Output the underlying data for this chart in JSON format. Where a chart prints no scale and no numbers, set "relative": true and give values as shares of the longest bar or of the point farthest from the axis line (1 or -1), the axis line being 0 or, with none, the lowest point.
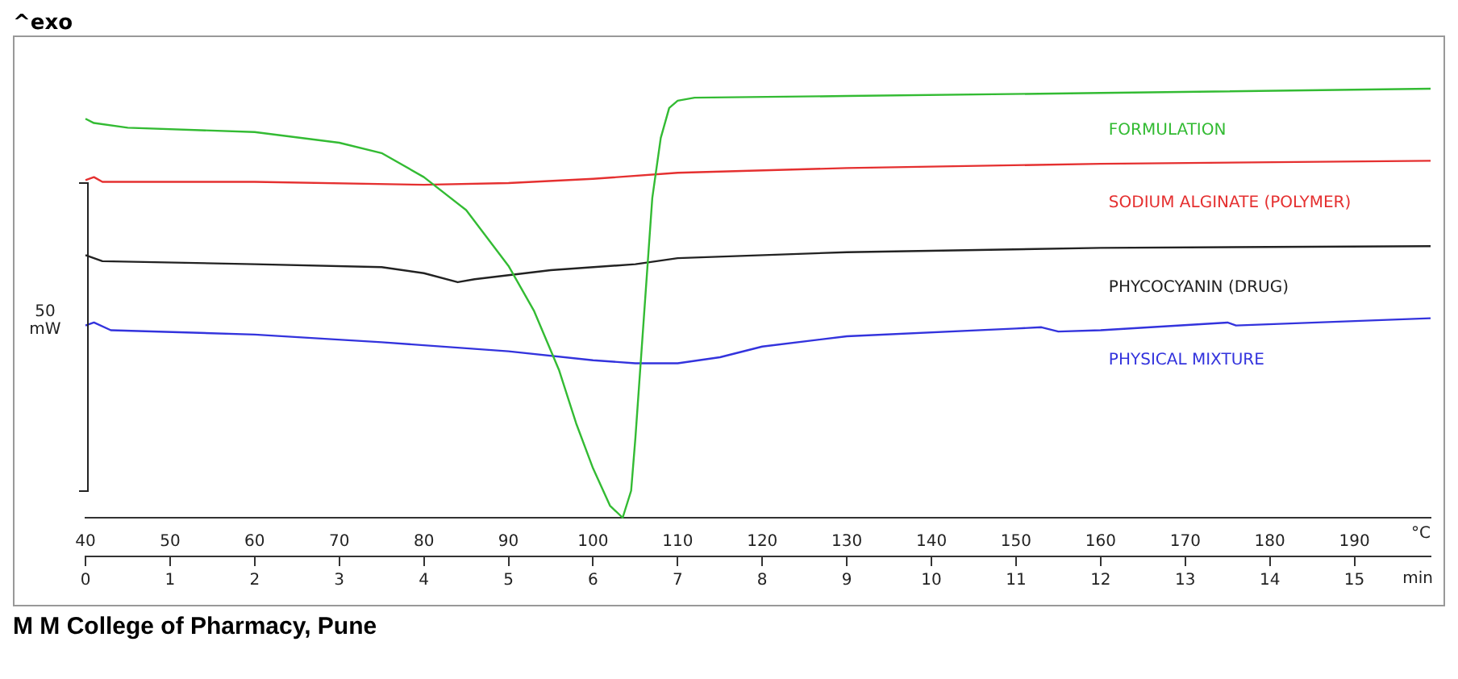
{
  "chart_data": {
    "type": "line",
    "relative": true,
    "xlabel": "°C",
    "x2label": "min",
    "xlim": [
      40,
      199
    ],
    "xticks": [
      40,
      50,
      60,
      70,
      80,
      90,
      100,
      110,
      120,
      130,
      140,
      150,
      160,
      170,
      180,
      190
    ],
    "x2lim": [
      0,
      15.9
    ],
    "x2ticks": [
      0,
      1,
      2,
      3,
      4,
      5,
      6,
      7,
      8,
      9,
      10,
      11,
      12,
      13,
      14,
      15
    ],
    "grid": false,
    "legend": false,
    "marker": "none",
    "line_style": "solid",
    "annotations": [
      "^exo",
      "50 mW",
      "M M College of Pharmacy, Pune"
    ],
    "series": [
      {
        "name": "FORMULATION",
        "color": "#33bb33",
        "x": [
          40,
          41,
          45,
          60,
          70,
          75,
          80,
          85,
          90,
          93,
          96,
          98,
          100,
          102,
          103.5,
          104.5,
          105,
          106,
          107,
          108,
          109,
          110,
          112,
          130,
          160,
          199
        ],
        "values": [
          0.93,
          0.92,
          0.909,
          0.899,
          0.874,
          0.85,
          0.794,
          0.717,
          0.587,
          0.483,
          0.343,
          0.22,
          0.115,
          0.028,
          0,
          0.063,
          0.185,
          0.465,
          0.745,
          0.885,
          0.955,
          0.972,
          0.979,
          0.983,
          0.99,
          1
        ]
      },
      {
        "name": "SODIUM ALGINATE (POLYMER)",
        "color": "#e53030",
        "x": [
          40,
          41,
          42,
          60,
          80,
          90,
          100,
          110,
          130,
          160,
          199
        ],
        "values": [
          0.787,
          0.794,
          0.783,
          0.783,
          0.776,
          0.78,
          0.79,
          0.804,
          0.815,
          0.825,
          0.832
        ]
      },
      {
        "name": "PHYCOCYANIN (DRUG)",
        "color": "#222222",
        "x": [
          40,
          41,
          42,
          60,
          75,
          80,
          84,
          86,
          95,
          105,
          110,
          130,
          160,
          199
        ],
        "values": [
          0.612,
          0.605,
          0.598,
          0.591,
          0.584,
          0.57,
          0.549,
          0.556,
          0.577,
          0.591,
          0.605,
          0.619,
          0.629,
          0.633
        ]
      },
      {
        "name": "PHYSICAL MIXTURE",
        "color": "#3333dd",
        "x": [
          40,
          41,
          43,
          60,
          75,
          90,
          100,
          105,
          110,
          115,
          120,
          130,
          150,
          153,
          155,
          160,
          175,
          176,
          199
        ],
        "values": [
          0.448,
          0.455,
          0.437,
          0.427,
          0.409,
          0.388,
          0.367,
          0.36,
          0.36,
          0.374,
          0.399,
          0.423,
          0.441,
          0.444,
          0.434,
          0.437,
          0.455,
          0.448,
          0.465
        ]
      }
    ]
  }
}
